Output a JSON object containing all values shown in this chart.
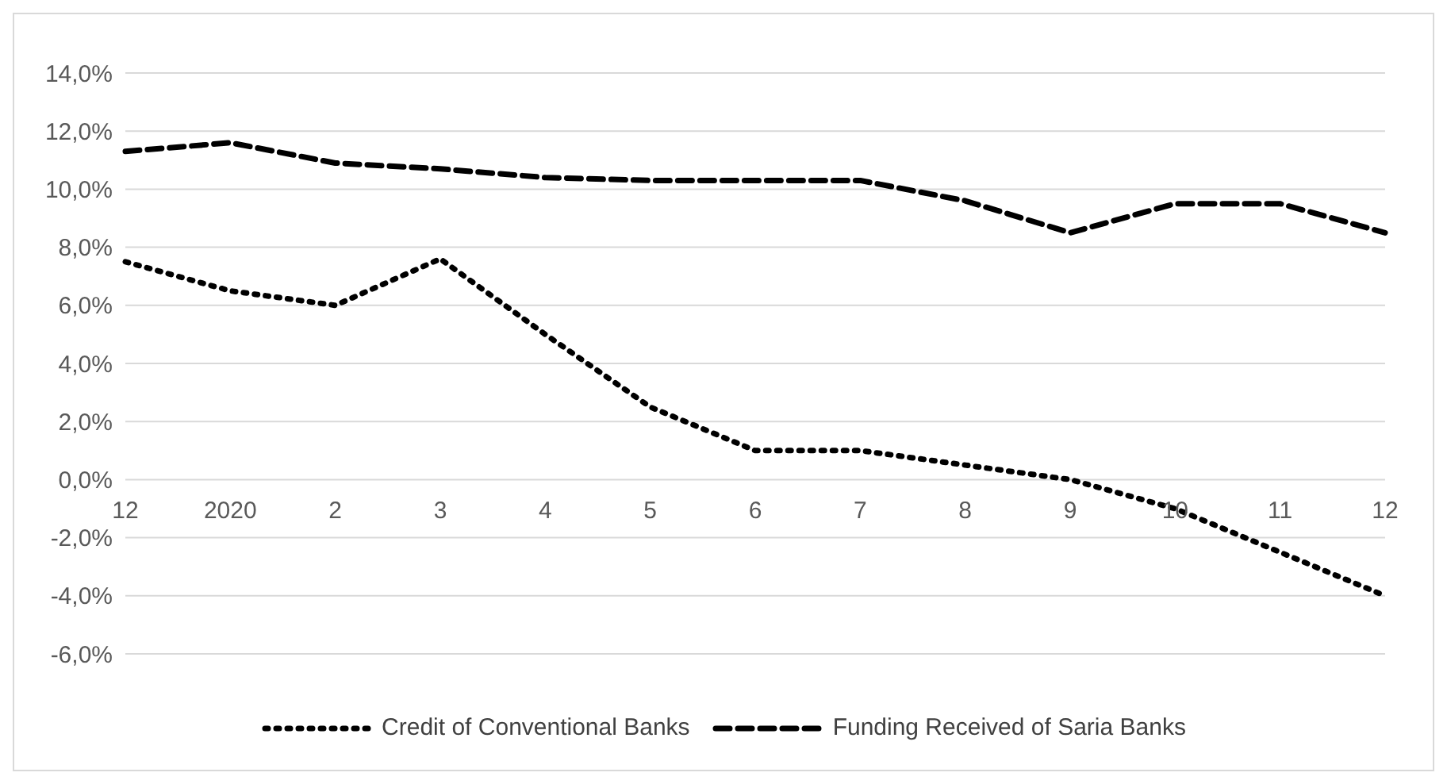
{
  "chart_data": {
    "type": "line",
    "categories": [
      "12",
      "2020",
      "2",
      "3",
      "4",
      "5",
      "6",
      "7",
      "8",
      "9",
      "10",
      "11",
      "12"
    ],
    "series": [
      {
        "name": "Credit of Conventional Banks",
        "color": "#000000",
        "line_style": "dotted",
        "values": [
          7.5,
          6.5,
          6.0,
          7.6,
          5.0,
          2.5,
          1.0,
          1.0,
          0.5,
          0.0,
          -1.0,
          -2.5,
          -4.0
        ]
      },
      {
        "name": "Funding Received of Saria Banks",
        "color": "#000000",
        "line_style": "dashed",
        "values": [
          11.3,
          11.6,
          10.9,
          10.7,
          10.4,
          10.3,
          10.3,
          10.3,
          9.6,
          8.5,
          9.5,
          9.5,
          8.5
        ]
      }
    ],
    "ylim": [
      -6,
      14
    ],
    "yticks": [
      {
        "value": 14,
        "label": "14,0%"
      },
      {
        "value": 12,
        "label": "12,0%"
      },
      {
        "value": 10,
        "label": "10,0%"
      },
      {
        "value": 8,
        "label": "8,0%"
      },
      {
        "value": 6,
        "label": "6,0%"
      },
      {
        "value": 4,
        "label": "4,0%"
      },
      {
        "value": 2,
        "label": "2,0%"
      },
      {
        "value": 0,
        "label": "0,0%"
      },
      {
        "value": -2,
        "label": "-2,0%"
      },
      {
        "value": -4,
        "label": "-4,0%"
      },
      {
        "value": -6,
        "label": "-6,0%"
      }
    ],
    "grid": "y",
    "legend": "bottom",
    "marker": "none"
  }
}
